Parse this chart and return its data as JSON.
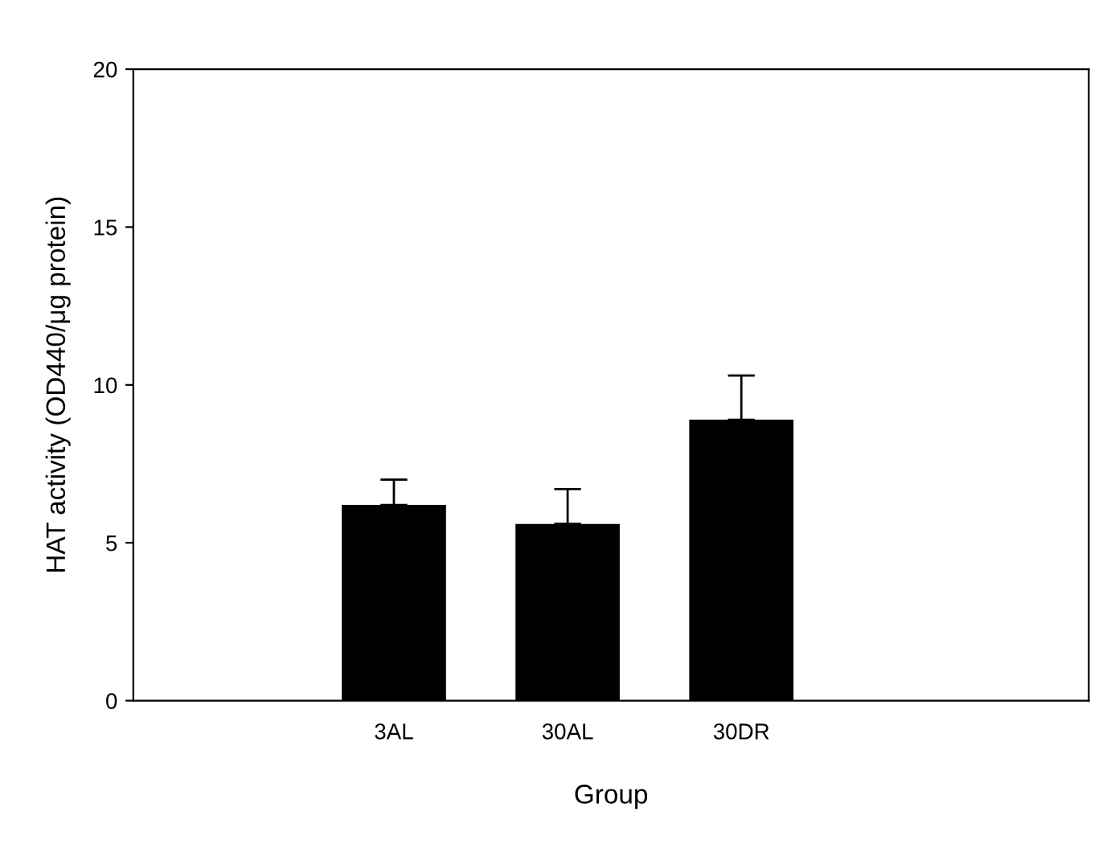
{
  "chart_data": {
    "type": "bar",
    "xlabel": "Group",
    "ylabel": "HAT activity (OD440/μg protein)",
    "categories": [
      "3AL",
      "30AL",
      "30DR"
    ],
    "values": [
      6.2,
      5.6,
      8.9
    ],
    "errors": [
      [
        6.2,
        7.0
      ],
      [
        5.6,
        6.7
      ],
      [
        8.9,
        10.3
      ]
    ],
    "color": "#000000",
    "ylim": [
      0,
      20
    ],
    "yticks": [
      0,
      5,
      10,
      15,
      20
    ],
    "grid": false
  }
}
